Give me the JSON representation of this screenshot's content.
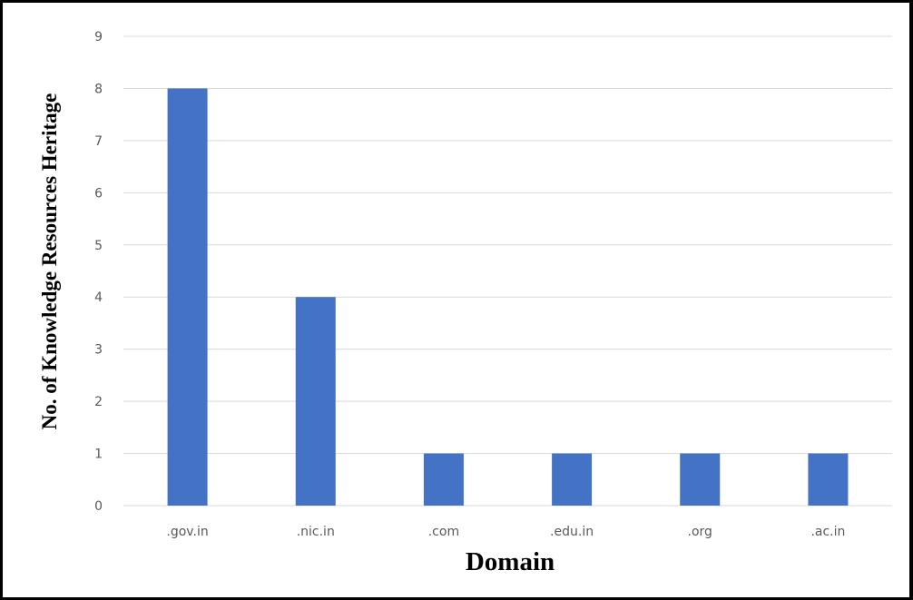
{
  "chart_data": {
    "type": "bar",
    "title": "",
    "xlabel": "Domain",
    "ylabel": "No. of Knowledge Resources Heritage",
    "categories": [
      ".gov.in",
      ".nic.in",
      ".com",
      ".edu.in",
      ".org",
      ".ac.in"
    ],
    "values": [
      8,
      4,
      1,
      1,
      1,
      1
    ],
    "ylim": [
      0,
      9
    ],
    "yticks": [
      "0",
      "1",
      "2",
      "3",
      "4",
      "5",
      "6",
      "7",
      "8",
      "9"
    ],
    "grid": true,
    "legend": "none",
    "colors": {
      "bar": "#4472C4",
      "grid": "#D9D9D9",
      "tick_text": "#595959",
      "title_text": "#000000"
    }
  }
}
